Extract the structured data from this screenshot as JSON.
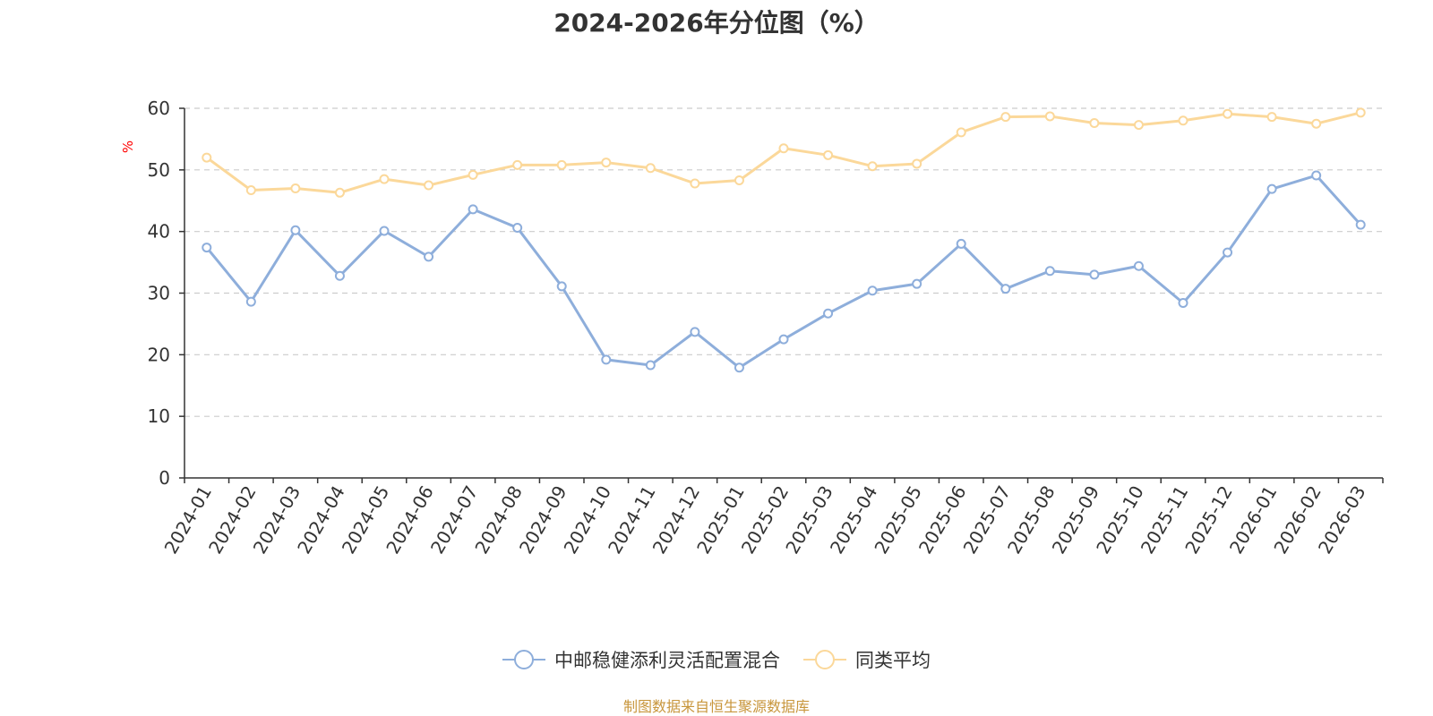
{
  "chart_data": {
    "type": "line",
    "title": "2024-2026年分位图（%）",
    "xlabel": "",
    "ylabel": "%",
    "ylim": [
      0,
      60
    ],
    "yticks": [
      0,
      10,
      20,
      30,
      40,
      50,
      60
    ],
    "grid": true,
    "legend_position": "bottom",
    "categories": [
      "2024-01",
      "2024-02",
      "2024-03",
      "2024-04",
      "2024-05",
      "2024-06",
      "2024-07",
      "2024-08",
      "2024-09",
      "2024-10",
      "2024-11",
      "2024-12",
      "2025-01",
      "2025-02",
      "2025-03",
      "2025-04",
      "2025-05",
      "2025-06",
      "2025-07",
      "2025-08",
      "2025-09",
      "2025-10",
      "2025-11",
      "2025-12",
      "2026-01",
      "2026-02",
      "2026-03"
    ],
    "series": [
      {
        "name": "中邮稳健添利灵活配置混合",
        "color": "#8eaedb",
        "values": [
          37.4,
          28.6,
          40.2,
          32.8,
          40.1,
          35.9,
          43.6,
          40.6,
          31.1,
          19.2,
          18.3,
          23.7,
          17.9,
          22.5,
          26.7,
          30.4,
          31.5,
          38.0,
          30.7,
          33.6,
          33.0,
          34.4,
          28.4,
          36.6,
          46.9,
          49.1,
          41.1
        ]
      },
      {
        "name": "同类平均",
        "color": "#fbd89a",
        "values": [
          52.0,
          46.7,
          47.0,
          46.3,
          48.5,
          47.5,
          49.2,
          50.8,
          50.8,
          51.2,
          50.3,
          47.8,
          48.3,
          53.5,
          52.4,
          50.6,
          51.0,
          56.1,
          58.6,
          58.7,
          57.6,
          57.3,
          58.0,
          59.1,
          58.6,
          57.5,
          59.3
        ]
      }
    ],
    "source": "制图数据来自恒生聚源数据库"
  }
}
